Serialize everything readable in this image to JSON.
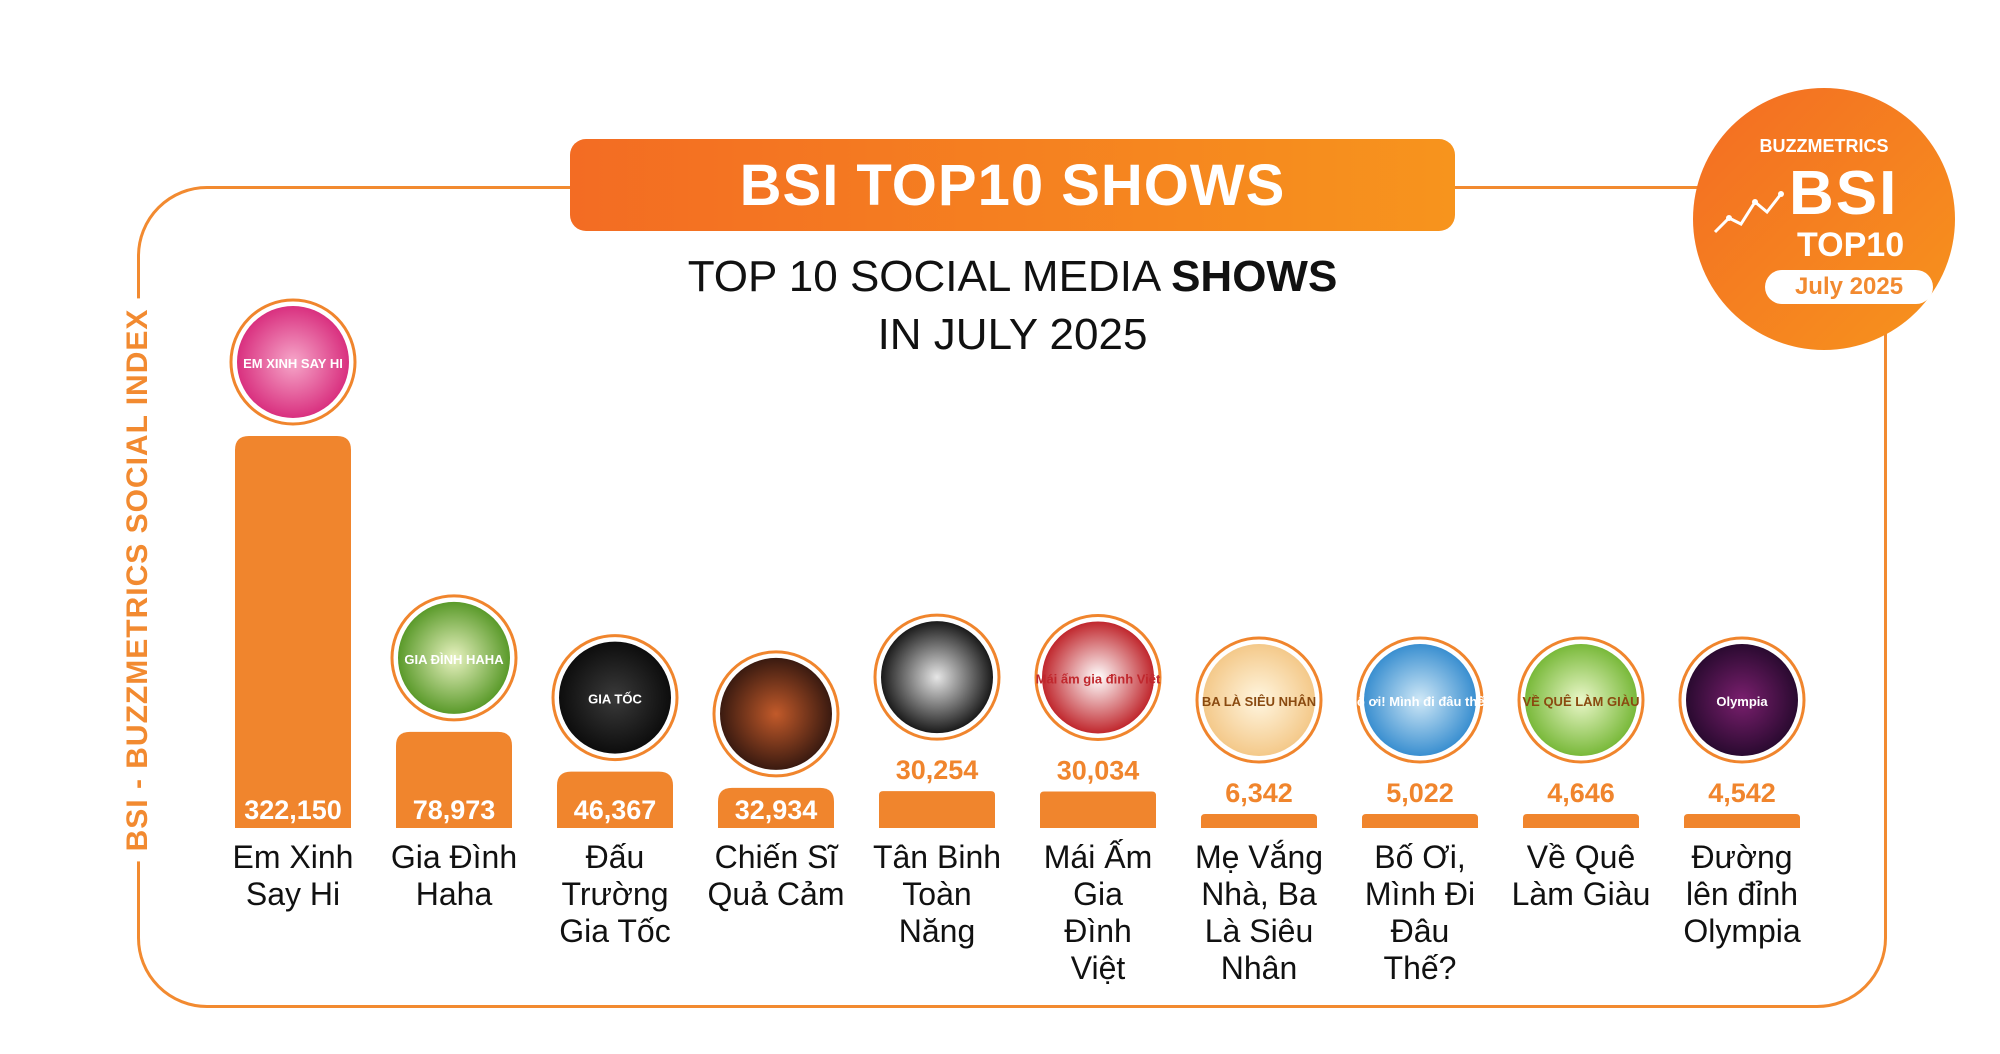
{
  "header": {
    "banner_title": "BSI TOP10 SHOWS",
    "subtitle_prefix": "TOP 10 SOCIAL MEDIA",
    "subtitle_bold": "SHOWS",
    "subtitle_line2": "IN JULY 2025",
    "side_label": "BSI - BUZZMETRICS SOCIAL INDEX"
  },
  "badge": {
    "brand": "BUZZMETRICS",
    "bsi": "BSI",
    "top": "TOP10",
    "date": "July 2025"
  },
  "colors": {
    "accent": "#f28a30",
    "bar": "#f0852d",
    "banner_start": "#f36c23",
    "banner_end": "#f7941d"
  },
  "chart_data": {
    "type": "bar",
    "title": "TOP 10 SOCIAL MEDIA SHOWS IN JULY 2025",
    "ylabel": "BSI - BUZZMETRICS SOCIAL INDEX",
    "xlabel": "",
    "ylim": [
      0,
      322150
    ],
    "categories": [
      "Em Xinh Say Hi",
      "Gia Đình Haha",
      "Đấu Trường Gia Tốc",
      "Chiến Sĩ Quả Cảm",
      "Tân Binh Toàn Năng",
      "Mái Ấm Gia Đình Việt",
      "Mẹ Vắng Nhà, Ba Là Siêu Nhân",
      "Bố Ơi, Mình Đi Đâu Thế?",
      "Về Quê Làm Giàu",
      "Đường lên đỉnh Olympia"
    ],
    "values": [
      322150,
      78973,
      46367,
      32934,
      30254,
      30034,
      6342,
      5022,
      4646,
      4542
    ],
    "value_labels": [
      "322,150",
      "78,973",
      "46,367",
      "32,934",
      "30,254",
      "30,034",
      "6,342",
      "5,022",
      "4,646",
      "4,542"
    ],
    "label_lines": [
      [
        "Em Xinh",
        "Say Hi"
      ],
      [
        "Gia Đình",
        "Haha"
      ],
      [
        "Đấu",
        "Trường",
        "Gia Tốc"
      ],
      [
        "Chiến Sĩ",
        "Quả Cảm"
      ],
      [
        "Tân Binh",
        "Toàn",
        "Năng"
      ],
      [
        "Mái Ấm",
        "Gia",
        "Đình",
        "Việt"
      ],
      [
        "Mẹ Vắng",
        "Nhà, Ba",
        "Là Siêu",
        "Nhân"
      ],
      [
        "Bố Ơi,",
        "Mình Đi",
        "Đâu",
        "Thế?"
      ],
      [
        "Về Quê",
        "Làm Giàu"
      ],
      [
        "Đường",
        "lên đỉnh",
        "Olympia"
      ]
    ],
    "logo_text": [
      "EM XINH SAY HI",
      "GIA ĐÌNH HAHA",
      "GIA TỐC",
      "",
      "",
      "Mái ấm gia đình Việt",
      "BA LÀ SIÊU NHÂN",
      "Bố ơi! Mình đi đâu thế?",
      "VỀ QUÊ LÀM GIÀU",
      "Olympia"
    ],
    "logo_colors": [
      [
        "#f6a6c9",
        "#d9307f"
      ],
      [
        "#e8f2c0",
        "#5a9a2a"
      ],
      [
        "#3a3a3a",
        "#0d0d0d"
      ],
      [
        "#c25a2a",
        "#3a1a10"
      ],
      [
        "#e6e6e6",
        "#1a1a1a"
      ],
      [
        "#ffffff",
        "#c0272d"
      ],
      [
        "#fff6e0",
        "#f4c98a"
      ],
      [
        "#cfe8f7",
        "#3a8fd0"
      ],
      [
        "#eaf7c9",
        "#79b93a"
      ],
      [
        "#7a1f6e",
        "#2a0a30"
      ]
    ]
  }
}
